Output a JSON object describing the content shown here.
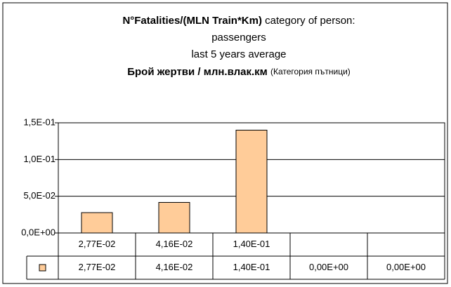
{
  "chart_data": {
    "type": "bar",
    "title": [
      "N°Fatalities/(MLN Train*Km)",
      "category of person:",
      "passengers",
      "last 5 years average",
      "Брой жертви / млн.влак.км",
      "(Категория пътници)"
    ],
    "categories": [
      "2,77E-02",
      "4,16E-02",
      "1,40E-01",
      null,
      null
    ],
    "values": [
      0.0277,
      0.0416,
      0.14,
      0,
      0
    ],
    "value_labels": [
      "2,77E-02",
      "4,16E-02",
      "1,40E-01",
      "0,00E+00",
      "0,00E+00"
    ],
    "color": "#ffcc99",
    "ylim": [
      0,
      0.15
    ],
    "yticks": [
      {
        "value": 0,
        "label": "0,0E+00"
      },
      {
        "value": 0.05,
        "label": "5,0E-02"
      },
      {
        "value": 0.1,
        "label": "1,0E-01"
      },
      {
        "value": 0.15,
        "label": "1,5E-01"
      }
    ],
    "grid": true
  }
}
